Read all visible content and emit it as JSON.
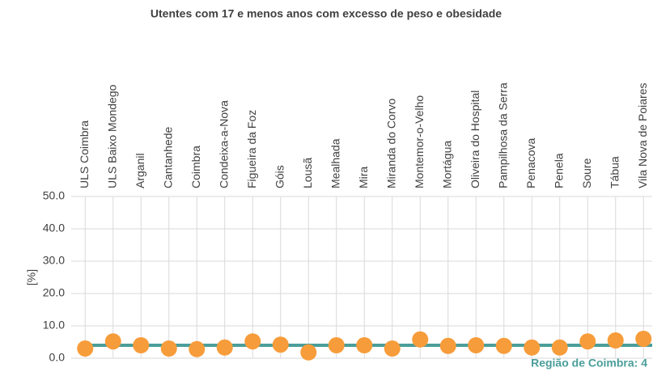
{
  "chart_data": {
    "type": "dot",
    "title": "Utentes com 17 e menos anos com excesso de peso e obesidade",
    "y_label": "[%]",
    "categories": [
      "ULS Coimbra",
      "ULS Baixo Mondego",
      "Arganil",
      "Cantanhede",
      "Coimbra",
      "Condeixa-a-Nova",
      "Figueira da Foz",
      "Góis",
      "Lousã",
      "Mealhada",
      "Mira",
      "Miranda do Corvo",
      "Montemor-o-Velho",
      "Mortágua",
      "Oliveira do Hospital",
      "Pampilhosa da Serra",
      "Penacova",
      "Penela",
      "Soure",
      "Tábua",
      "Vila Nova de Poiares"
    ],
    "values": [
      3.0,
      5.2,
      4.0,
      3.0,
      2.8,
      3.3,
      5.2,
      4.2,
      1.8,
      4.0,
      4.0,
      3.0,
      5.8,
      3.8,
      4.0,
      3.8,
      3.3,
      3.3,
      5.2,
      5.5,
      6.0
    ],
    "color": "#f79c3a",
    "reference": {
      "value": 4,
      "label": "Região de Coimbra: 4",
      "color": "#4a9e9a"
    },
    "ylim": [
      0,
      50
    ],
    "yticks": [
      {
        "value": 0,
        "label": "0.0"
      },
      {
        "value": 10,
        "label": "10.0"
      },
      {
        "value": 20,
        "label": "20.0"
      },
      {
        "value": 30,
        "label": "30.0"
      },
      {
        "value": 40,
        "label": "40.0"
      },
      {
        "value": 50,
        "label": "50.0"
      }
    ],
    "grid": true
  }
}
